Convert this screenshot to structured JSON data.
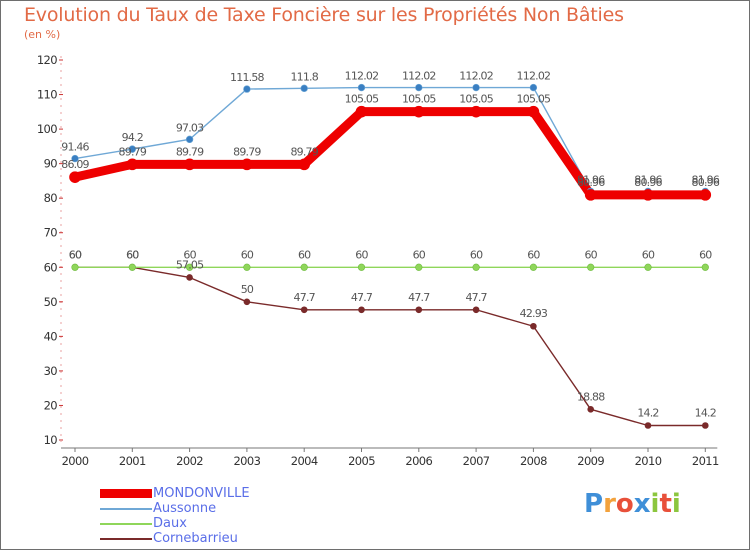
{
  "title": "Evolution du Taux de Taxe Foncière sur les Propriétés Non Bâties",
  "unit": "(en %)",
  "logo": {
    "letters": [
      {
        "ch": "P",
        "color": "#3f8fd8"
      },
      {
        "ch": "r",
        "color": "#f3a23c"
      },
      {
        "ch": "o",
        "color": "#e8503a"
      },
      {
        "ch": "x",
        "color": "#3f8fd8"
      },
      {
        "ch": "i",
        "color": "#8cc63e"
      },
      {
        "ch": "t",
        "color": "#e8503a"
      },
      {
        "ch": "i",
        "color": "#8cc63e"
      }
    ]
  },
  "chart_data": {
    "type": "line",
    "title": "Evolution du Taux de Taxe Foncière sur les Propriétés Non Bâties",
    "ylabel": "(en %)",
    "xlabel": "",
    "ylim": [
      10,
      120
    ],
    "yticks": [
      10,
      20,
      30,
      40,
      50,
      60,
      70,
      80,
      90,
      100,
      110,
      120
    ],
    "categories": [
      "2000",
      "2001",
      "2002",
      "2003",
      "2004",
      "2005",
      "2006",
      "2007",
      "2008",
      "2009",
      "2010",
      "2011"
    ],
    "grid": false,
    "series": [
      {
        "name": "MONDONVILLE",
        "color": "#ee0000",
        "values": [
          86.09,
          89.79,
          89.79,
          89.79,
          89.79,
          105.05,
          105.05,
          105.05,
          105.05,
          80.96,
          80.96,
          80.96
        ],
        "labels": [
          "86.09",
          "89.79",
          "89.79",
          "89.79",
          "89.79",
          "105.05",
          "105.05",
          "105.05",
          "105.05",
          "80.96",
          "80.96",
          "80.96"
        ]
      },
      {
        "name": "Aussonne",
        "color": "#6fa8d6",
        "values": [
          91.46,
          94.2,
          97.03,
          111.58,
          111.8,
          112.02,
          112.02,
          112.02,
          112.02,
          81.96,
          81.96,
          81.96
        ],
        "labels": [
          "91.46",
          "94.2",
          "97.03",
          "111.58",
          "111.8",
          "112.02",
          "112.02",
          "112.02",
          "112.02",
          "81.96",
          "81.96",
          "81.96"
        ]
      },
      {
        "name": "Daux",
        "color": "#8fd65a",
        "values": [
          60,
          60,
          60,
          60,
          60,
          60,
          60,
          60,
          60,
          60,
          60,
          60
        ],
        "labels": [
          "60",
          "60",
          "60",
          "60",
          "60",
          "60",
          "60",
          "60",
          "60",
          "60",
          "60",
          "60"
        ]
      },
      {
        "name": "Cornebarrieu",
        "color": "#7a2a2a",
        "values": [
          60,
          60,
          57.05,
          50,
          47.7,
          47.7,
          47.7,
          47.7,
          42.93,
          18.88,
          14.2,
          14.2
        ],
        "labels": [
          "60",
          "60",
          "57.05",
          "50",
          "47.7",
          "47.7",
          "47.7",
          "47.7",
          "42.93",
          "18.88",
          "14.2",
          "14.2"
        ]
      }
    ]
  }
}
